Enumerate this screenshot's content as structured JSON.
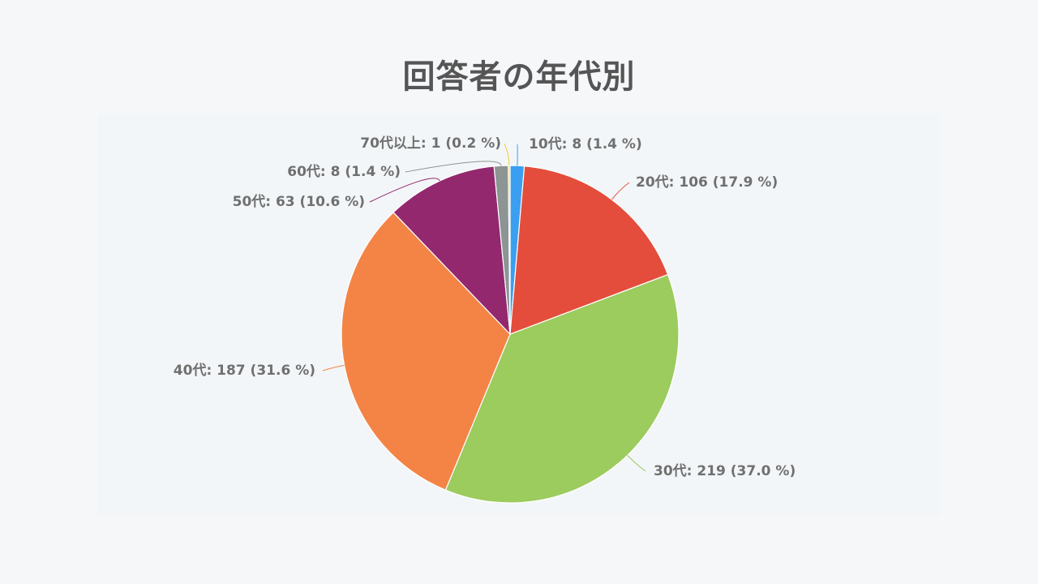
{
  "title": "回答者の年代別",
  "chart_data": {
    "type": "pie",
    "title": "回答者の年代別",
    "slices": [
      {
        "label": "10代",
        "value": 8,
        "percent": "1.4",
        "color": "#3a9ff0",
        "display": "10代: 8 (1.4 %)"
      },
      {
        "label": "20代",
        "value": 106,
        "percent": "17.9",
        "color": "#e44d3b",
        "display": "20代: 106 (17.9 %)"
      },
      {
        "label": "30代",
        "value": 219,
        "percent": "37.0",
        "color": "#9ccb5e",
        "display": "30代: 219 (37.0 %)"
      },
      {
        "label": "40代",
        "value": 187,
        "percent": "31.6",
        "color": "#f38446",
        "display": "40代: 187 (31.6 %)"
      },
      {
        "label": "50代",
        "value": 63,
        "percent": "10.6",
        "color": "#93286f",
        "display": "50代: 63 (10.6 %)"
      },
      {
        "label": "60代",
        "value": 8,
        "percent": "1.4",
        "color": "#8c9494",
        "display": "60代: 8 (1.4 %)"
      },
      {
        "label": "70代以上",
        "value": 1,
        "percent": "0.2",
        "color": "#f0c93c",
        "display": "70代以上: 1 (0.2 %)"
      }
    ],
    "legend": "none",
    "start_angle": "top",
    "direction": "clockwise"
  }
}
